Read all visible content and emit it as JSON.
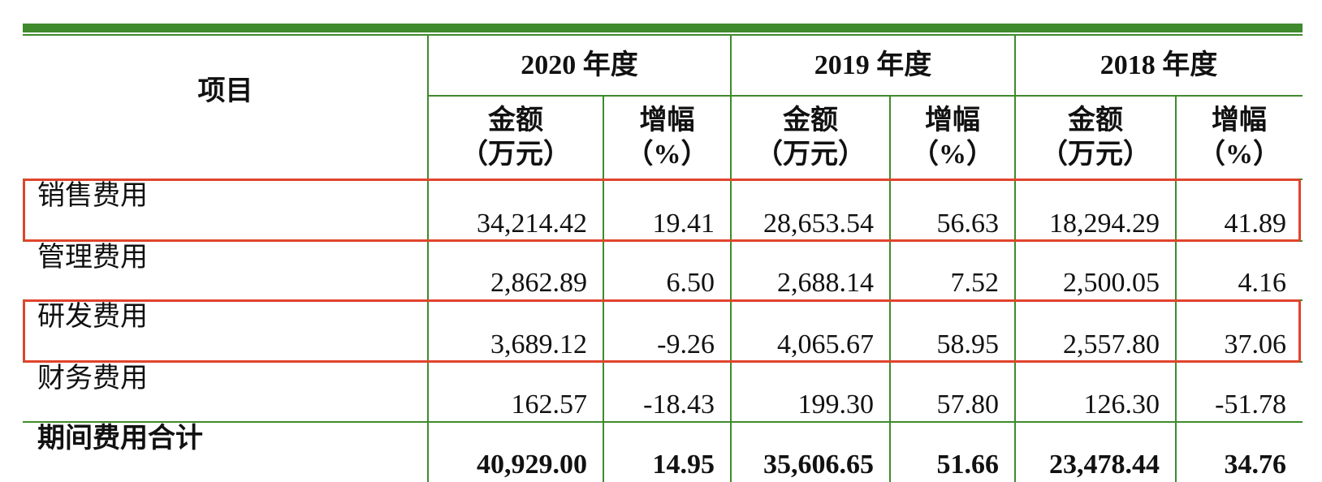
{
  "table": {
    "item_header": "项目",
    "years": [
      "2020 年度",
      "2019 年度",
      "2018 年度"
    ],
    "amount_header": [
      "金额",
      "（万元）"
    ],
    "growth_header": [
      "增幅",
      "（%）"
    ],
    "rows": [
      [
        "销售费用",
        "34,214.42",
        "19.41",
        "28,653.54",
        "56.63",
        "18,294.29",
        "41.89"
      ],
      [
        "管理费用",
        "2,862.89",
        "6.50",
        "2,688.14",
        "7.52",
        "2,500.05",
        "4.16"
      ],
      [
        "研发费用",
        "3,689.12",
        "-9.26",
        "4,065.67",
        "58.95",
        "2,557.80",
        "37.06"
      ],
      [
        "财务费用",
        "162.57",
        "-18.43",
        "199.30",
        "57.80",
        "126.30",
        "-51.78"
      ],
      [
        "期间费用合计",
        "40,929.00",
        "14.95",
        "35,606.65",
        "51.66",
        "23,478.44",
        "34.76"
      ]
    ]
  }
}
